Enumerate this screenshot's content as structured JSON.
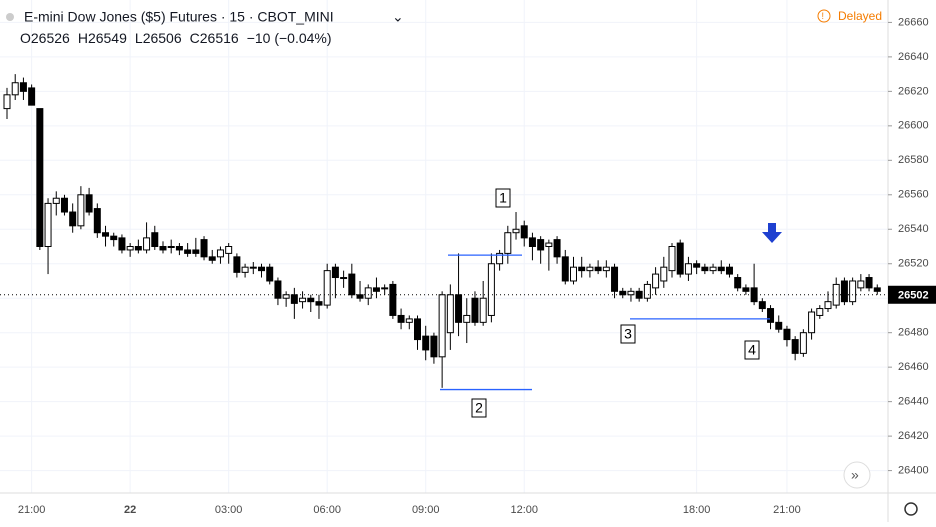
{
  "chart_data": {
    "type": "candlestick",
    "title": "E-mini Dow Jones ($5) Futures · 15 · CBOT_MINI",
    "status": "Delayed",
    "ohlc_labels": [
      "O",
      "H",
      "L",
      "C"
    ],
    "ohlc_values": [
      26526,
      26549,
      26506,
      26516
    ],
    "change": "−10 (−0.04%)",
    "last_price": 26502,
    "up_color": "#ffffff",
    "down_color": "#000000",
    "ylim": [
      26387,
      26673
    ],
    "yticks": [
      26400,
      26420,
      26440,
      26460,
      26480,
      26500,
      26520,
      26540,
      26560,
      26580,
      26600,
      26620,
      26640,
      26660
    ],
    "categories": [
      null,
      null,
      null,
      "21:00",
      null,
      null,
      null,
      null,
      null,
      null,
      null,
      null,
      null,
      null,
      null,
      "22",
      null,
      null,
      null,
      null,
      null,
      null,
      null,
      null,
      null,
      null,
      null,
      "03:00",
      null,
      null,
      null,
      null,
      null,
      null,
      null,
      null,
      null,
      null,
      null,
      "06:00",
      null,
      null,
      null,
      null,
      null,
      null,
      null,
      null,
      null,
      null,
      null,
      "09:00",
      null,
      null,
      null,
      null,
      null,
      null,
      null,
      null,
      null,
      null,
      null,
      "12:00",
      null,
      null,
      null,
      null,
      null,
      null,
      null,
      null,
      null,
      null,
      null,
      null,
      null,
      null,
      null,
      null,
      null,
      null,
      null,
      null,
      "18:00",
      null,
      null,
      null,
      null,
      null,
      null,
      null,
      null,
      null,
      null,
      "21:00",
      null,
      null,
      null,
      null,
      null,
      null,
      null,
      null,
      null,
      null,
      null
    ],
    "open": [
      26610,
      26618,
      26625,
      26622,
      26610,
      26530,
      26555,
      26558,
      26550,
      26542,
      26560,
      26552,
      26538,
      26536,
      26535,
      26528,
      26530,
      26528,
      26538,
      26530,
      26530,
      26530,
      26528,
      26528,
      26534,
      26524,
      26524,
      26526,
      26524,
      26515,
      26518,
      26518,
      26518,
      26510,
      26500,
      26502,
      26498,
      26500,
      26498,
      26496,
      26518,
      26512,
      26514,
      26502,
      26500,
      26506,
      26506,
      26508,
      26490,
      26486,
      26488,
      26478,
      26478,
      26466,
      26480,
      26502,
      26486,
      26500,
      26486,
      26490,
      26520,
      26526,
      26538,
      26542,
      26535,
      26534,
      26530,
      26534,
      26524,
      26510,
      26518,
      26516,
      26518,
      26516,
      26518,
      26504,
      26502,
      26504,
      26500,
      26506,
      26510,
      26516,
      26532,
      26514,
      26520,
      26518,
      26516,
      26518,
      26518,
      26512,
      26506,
      26506,
      26498,
      26494,
      26486,
      26482,
      26476,
      26468,
      26480,
      26490,
      26494,
      26496,
      26510,
      26498,
      26506,
      26512,
      26506
    ],
    "high": [
      26622,
      26630,
      26628,
      26624,
      26610,
      26558,
      26562,
      26560,
      26555,
      26565,
      26564,
      26555,
      26542,
      26538,
      26537,
      26532,
      26534,
      26544,
      26542,
      26533,
      26534,
      26532,
      26532,
      26535,
      26536,
      26528,
      26530,
      26532,
      26526,
      26520,
      26521,
      26520,
      26520,
      26512,
      26504,
      26506,
      26504,
      26502,
      26502,
      26520,
      26520,
      26516,
      26520,
      26510,
      26508,
      26512,
      26508,
      26510,
      26494,
      26490,
      26490,
      26484,
      26480,
      26504,
      26508,
      26526,
      26500,
      26504,
      26510,
      26526,
      26528,
      26542,
      26550,
      26545,
      26538,
      26536,
      26534,
      26536,
      26528,
      26524,
      26524,
      26520,
      26522,
      26522,
      26520,
      26506,
      26506,
      26506,
      26510,
      26518,
      26524,
      26532,
      26534,
      26524,
      26522,
      26520,
      26520,
      26522,
      26520,
      26514,
      26508,
      26520,
      26500,
      26496,
      26490,
      26484,
      26478,
      26482,
      26494,
      26496,
      26504,
      26512,
      26512,
      26512,
      26514,
      26514,
      26508
    ],
    "low": [
      26604,
      26615,
      26615,
      26612,
      26528,
      26514,
      26548,
      26548,
      26538,
      26540,
      26548,
      26535,
      26530,
      26530,
      26526,
      26524,
      26526,
      26526,
      26528,
      26526,
      26526,
      26525,
      26524,
      26524,
      26522,
      26520,
      26520,
      26520,
      26512,
      26512,
      26514,
      26512,
      26508,
      26496,
      26495,
      26488,
      26494,
      26492,
      26488,
      26494,
      26500,
      26506,
      26500,
      26498,
      26496,
      26500,
      26502,
      26488,
      26482,
      26482,
      26470,
      26464,
      26462,
      26448,
      26470,
      26478,
      26474,
      26484,
      26484,
      26486,
      26516,
      26520,
      26534,
      26530,
      26522,
      26520,
      26516,
      26520,
      26508,
      26508,
      26512,
      26512,
      26514,
      26512,
      26500,
      26500,
      26498,
      26498,
      26498,
      26502,
      26506,
      26512,
      26512,
      26510,
      26514,
      26514,
      26514,
      26514,
      26512,
      26504,
      26502,
      26496,
      26492,
      26482,
      26480,
      26472,
      26464,
      26466,
      26476,
      26488,
      26492,
      26494,
      26496,
      26496,
      26504,
      26504,
      26502
    ],
    "close": [
      26618,
      26625,
      26620,
      26612,
      26530,
      26555,
      26558,
      26550,
      26542,
      26560,
      26550,
      26538,
      26536,
      26534,
      26528,
      26530,
      26528,
      26535,
      26530,
      26528,
      26530,
      26528,
      26526,
      26526,
      26524,
      26522,
      26528,
      26530,
      26515,
      26518,
      26518,
      26516,
      26510,
      26500,
      26502,
      26497,
      26500,
      26498,
      26496,
      26516,
      26512,
      26512,
      26502,
      26500,
      26506,
      26504,
      26506,
      26490,
      26486,
      26488,
      26476,
      26470,
      26466,
      26502,
      26502,
      26486,
      26490,
      26486,
      26500,
      26520,
      26526,
      26538,
      26540,
      26535,
      26530,
      26528,
      26532,
      26524,
      26510,
      26518,
      26516,
      26518,
      26516,
      26518,
      26504,
      26502,
      26504,
      26500,
      26508,
      26514,
      26518,
      26530,
      26514,
      26520,
      26518,
      26516,
      26518,
      26516,
      26514,
      26506,
      26504,
      26498,
      26494,
      26486,
      26482,
      26476,
      26468,
      26480,
      26492,
      26494,
      26498,
      26508,
      26498,
      26510,
      26510,
      26506,
      26504
    ],
    "annotations": [
      {
        "text": "1",
        "level": 26525,
        "color": "#2962ff"
      },
      {
        "text": "2",
        "level": 26447,
        "color": "#2962ff"
      },
      {
        "text": "3",
        "level": 26488,
        "color": "#2962ff"
      },
      {
        "text": "4"
      }
    ]
  }
}
